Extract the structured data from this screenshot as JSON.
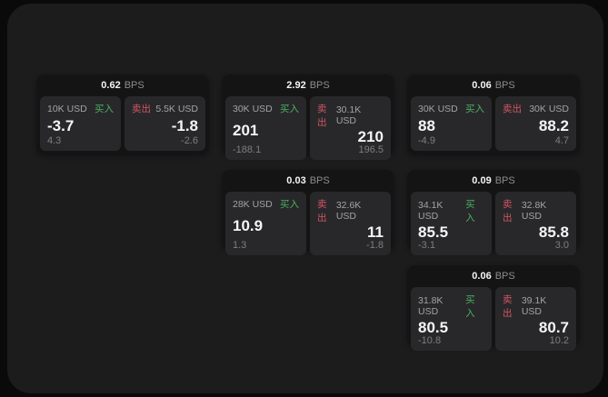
{
  "colors": {
    "panel_bg": "#1c1c1d",
    "card_bg": "#141415",
    "tile_bg": "#28282a",
    "label": "#a3a3a3",
    "muted": "#7e7e7e",
    "value": "#f5f5f5",
    "bps_label": "#8d8d8d",
    "buy": "#4caf62",
    "sell": "#d25563"
  },
  "labels": {
    "buy": "买入",
    "sell": "卖出",
    "bps": "BPS"
  },
  "cards": [
    {
      "bps": "0.62",
      "buy": {
        "notional": "10K USD",
        "price": "-3.7",
        "delta": "4.3"
      },
      "sell": {
        "notional": "5.5K USD",
        "price": "-1.8",
        "delta": "-2.6"
      }
    },
    {
      "bps": "2.92",
      "buy": {
        "notional": "30K USD",
        "price": "201",
        "delta": "-188.1"
      },
      "sell": {
        "notional": "30.1K USD",
        "price": "210",
        "delta": "196.5"
      }
    },
    {
      "bps": "0.06",
      "buy": {
        "notional": "30K USD",
        "price": "88",
        "delta": "-4.9"
      },
      "sell": {
        "notional": "30K USD",
        "price": "88.2",
        "delta": "4.7"
      }
    },
    {
      "bps": "0.03",
      "buy": {
        "notional": "28K USD",
        "price": "10.9",
        "delta": "1.3"
      },
      "sell": {
        "notional": "32.6K USD",
        "price": "11",
        "delta": "-1.8"
      }
    },
    {
      "bps": "0.09",
      "buy": {
        "notional": "34.1K USD",
        "price": "85.5",
        "delta": "-3.1"
      },
      "sell": {
        "notional": "32.8K USD",
        "price": "85.8",
        "delta": "3.0"
      }
    },
    {
      "bps": "0.06",
      "buy": {
        "notional": "31.8K USD",
        "price": "80.5",
        "delta": "-10.8"
      },
      "sell": {
        "notional": "39.1K USD",
        "price": "80.7",
        "delta": "10.2"
      }
    }
  ]
}
